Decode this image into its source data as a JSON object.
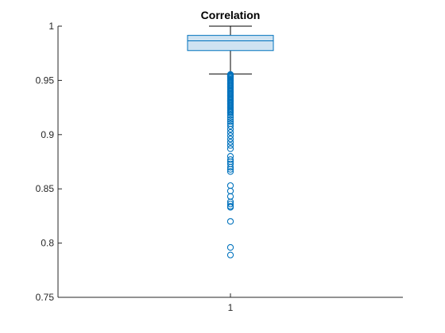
{
  "chart_data": {
    "type": "box",
    "title": "Correlation",
    "xlabel": "",
    "ylabel": "",
    "categories": [
      "1"
    ],
    "ylim": [
      0.75,
      1
    ],
    "yticks": [
      0.75,
      0.8,
      0.85,
      0.9,
      0.95,
      1
    ],
    "ytick_labels": [
      "0.75",
      "0.8",
      "0.85",
      "0.9",
      "0.95",
      "1"
    ],
    "xtick_labels": [
      "1"
    ],
    "grid": false,
    "box": {
      "whisker_low": 0.956,
      "q1": 0.9775,
      "median": 0.9865,
      "q3": 0.9915,
      "whisker_high": 1.0
    },
    "outliers": [
      0.9555,
      0.955,
      0.9545,
      0.954,
      0.9535,
      0.953,
      0.952,
      0.951,
      0.95,
      0.949,
      0.948,
      0.947,
      0.946,
      0.945,
      0.944,
      0.943,
      0.942,
      0.941,
      0.94,
      0.939,
      0.938,
      0.937,
      0.936,
      0.935,
      0.934,
      0.933,
      0.932,
      0.931,
      0.93,
      0.929,
      0.928,
      0.927,
      0.926,
      0.925,
      0.924,
      0.923,
      0.922,
      0.921,
      0.92,
      0.918,
      0.916,
      0.914,
      0.912,
      0.91,
      0.908,
      0.905,
      0.902,
      0.899,
      0.896,
      0.893,
      0.89,
      0.887,
      0.88,
      0.877,
      0.875,
      0.873,
      0.87,
      0.868,
      0.866,
      0.853,
      0.848,
      0.843,
      0.838,
      0.836,
      0.834,
      0.833,
      0.82,
      0.796,
      0.789
    ],
    "colors": {
      "box_edge": "#0072BD",
      "box_fill": "#CFE3F2",
      "median": "#0072BD",
      "whisker": "#000000",
      "outlier": "#0072BD",
      "axis": "#262626"
    }
  }
}
